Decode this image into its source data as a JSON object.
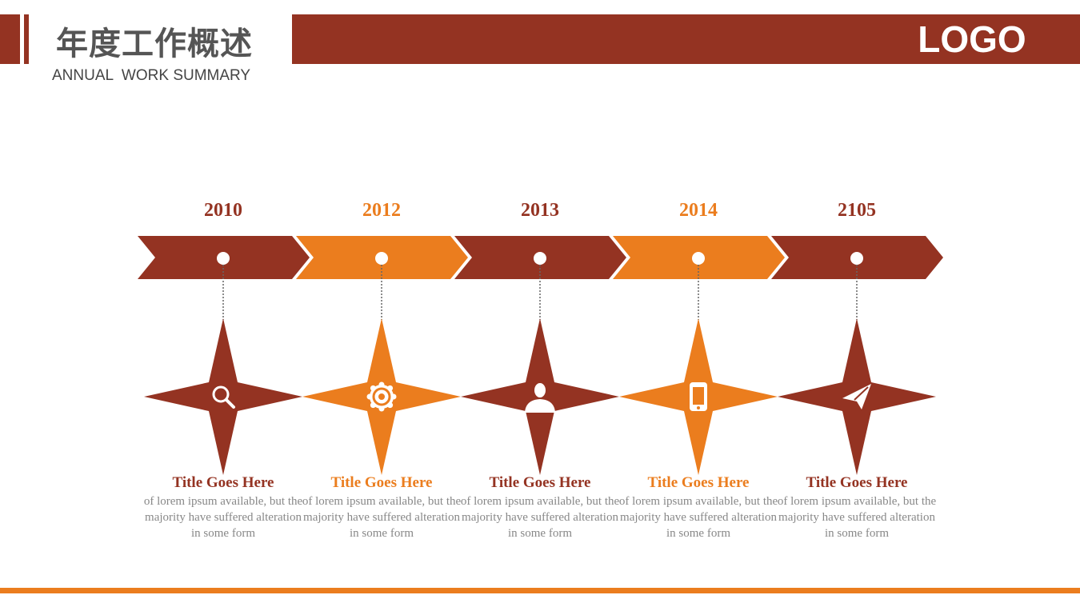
{
  "header": {
    "title": "年度工作概述",
    "subtitle": "ANNUAL  WORK SUMMARY",
    "logo": "LOGO"
  },
  "timeline": [
    {
      "year": "2010",
      "title": "Title Goes Here",
      "text": "of lorem ipsum available,  but the majority have suffered alteration in some form",
      "color": "#943322"
    },
    {
      "year": "2012",
      "title": "Title Goes Here",
      "text": "of lorem ipsum available,  but the majority have suffered alteration in some form",
      "color": "#eb7d1e"
    },
    {
      "year": "2013",
      "title": "Title Goes Here",
      "text": "of lorem ipsum available,  but the majority have suffered alteration in some form",
      "color": "#943322"
    },
    {
      "year": "2014",
      "title": "Title Goes Here",
      "text": "of lorem ipsum available,  but the majority have suffered alteration in some form",
      "color": "#eb7d1e"
    },
    {
      "year": "2105",
      "title": "Title Goes Here",
      "text": "of lorem ipsum available,  but the majority have suffered alteration in some form",
      "color": "#943322"
    }
  ]
}
